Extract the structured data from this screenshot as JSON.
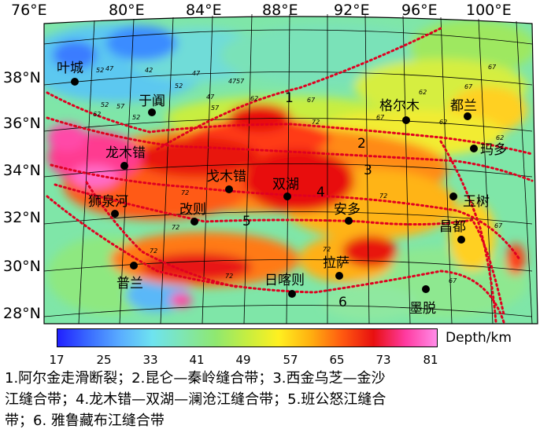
{
  "longitude_labels": [
    "76°E",
    "80°E",
    "84°E",
    "88°E",
    "92°E",
    "96°E",
    "100°E"
  ],
  "latitude_labels": [
    "38°N",
    "36°N",
    "34°N",
    "32°N",
    "30°N",
    "28°N"
  ],
  "cities": [
    {
      "name": "叶城"
    },
    {
      "name": "于阗"
    },
    {
      "name": "格尔木"
    },
    {
      "name": "都兰"
    },
    {
      "name": "玛多"
    },
    {
      "name": "龙木错"
    },
    {
      "name": "戈木错"
    },
    {
      "name": "双湖"
    },
    {
      "name": "狮泉河"
    },
    {
      "name": "改则"
    },
    {
      "name": "安多"
    },
    {
      "name": "玉树"
    },
    {
      "name": "昌都"
    },
    {
      "name": "普兰"
    },
    {
      "name": "拉萨"
    },
    {
      "name": "日喀则"
    },
    {
      "name": "墨脱"
    }
  ],
  "belt_numbers": [
    "1",
    "2",
    "3",
    "4",
    "5",
    "6"
  ],
  "contour_labels": [
    "52",
    "47",
    "42",
    "52",
    "57",
    "62",
    "52",
    "47",
    "57",
    "52",
    "47",
    "47",
    "57",
    "62",
    "67",
    "72",
    "72",
    "67",
    "62",
    "67",
    "62",
    "67",
    "62",
    "72",
    "72",
    "72",
    "72",
    "67",
    "72",
    "67"
  ],
  "colorbar": {
    "ticks": [
      "17",
      "25",
      "33",
      "41",
      "49",
      "57",
      "65",
      "73",
      "81"
    ],
    "label": "Depth/km",
    "colors": [
      "#2020ff",
      "#3a6cff",
      "#5aaeff",
      "#6ee3f0",
      "#7fe6b0",
      "#8fe870",
      "#c6ee40",
      "#fff020",
      "#ffb010",
      "#ff5a10",
      "#e81010",
      "#ff3aa0",
      "#ff8ce8"
    ]
  },
  "caption": {
    "line1": "1.阿尔金走滑断裂；2.昆仑—秦岭缝合带；3.西金乌芝—金沙",
    "line2": "江缝合带；4.龙木错—双湖—澜沧江缝合带；5.班公怒江缝合",
    "line3": "带；6. 雅鲁藏布江缝合带"
  }
}
